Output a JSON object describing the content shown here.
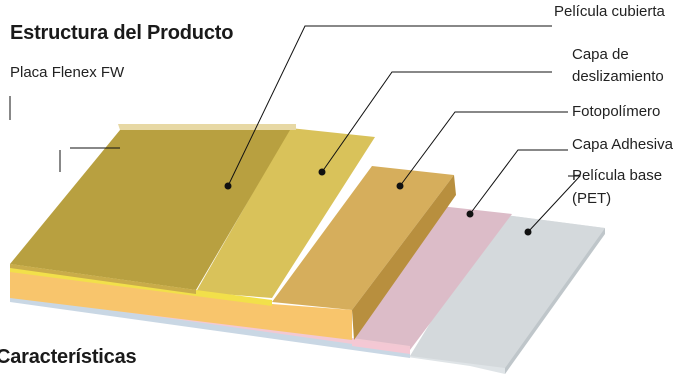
{
  "diagram": {
    "title": "Estructura del Producto",
    "plate_label": "Placa Flenex FW",
    "layers": [
      {
        "line1": "Película cubierta",
        "line2": ""
      },
      {
        "line1": "Capa de",
        "line2": "deslizamiento"
      },
      {
        "line1": "Fotopolímero",
        "line2": ""
      },
      {
        "line1": "Capa Adhesiva",
        "line2": ""
      },
      {
        "line1": "Película base",
        "line2": "(PET)"
      }
    ],
    "footer_heading": "Características"
  },
  "colors": {
    "cover_film": "#b8a040",
    "slip_layer": "#d9c25a",
    "photopolymer": "#d6ae5c",
    "adhesive": "#dcbcc8",
    "base_pet": "#d4d9dc",
    "orange_edge": "#f8c56c",
    "yellow_edge": "#f2e04a"
  }
}
